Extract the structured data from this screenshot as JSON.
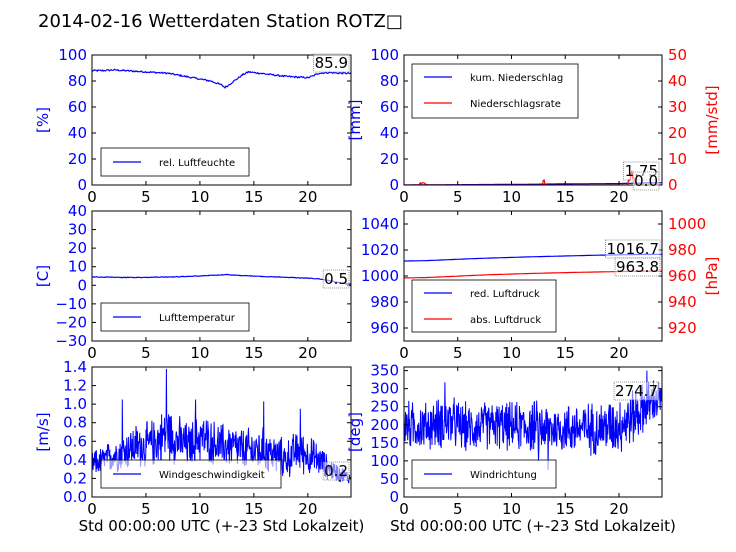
{
  "figure": {
    "title": "2014-02-16 Wetterdaten Station ROTZ□",
    "colors": {
      "left_axis": "#0000ff",
      "right_axis": "#ff0000",
      "frame": "#000000"
    }
  },
  "chart_data": [
    {
      "id": "humidity",
      "type": "line",
      "xlim": [
        0,
        24
      ],
      "xticks": [
        "0",
        "5",
        "10",
        "15",
        "20"
      ],
      "ylabel": "[%]",
      "ylim": [
        0,
        100
      ],
      "yticks": [
        "0",
        "20",
        "40",
        "60",
        "80",
        "100"
      ],
      "series": [
        {
          "name": "rel. Luftfeuchte",
          "color": "#0000ff",
          "x": [
            0,
            1,
            2,
            3,
            4,
            5,
            6,
            7,
            8,
            9,
            10,
            11,
            11.5,
            12,
            12.3,
            12.6,
            13,
            13.5,
            14,
            14.5,
            15,
            16,
            17,
            18,
            19,
            20,
            20.5,
            21,
            22,
            23,
            24
          ],
          "y": [
            88,
            88,
            88.5,
            88,
            87.5,
            87,
            86.5,
            86,
            84.5,
            83,
            81.5,
            80,
            78.5,
            77,
            75,
            76.5,
            79,
            82,
            85,
            87,
            86.5,
            85.5,
            84.5,
            83.5,
            83,
            82.5,
            84,
            86,
            86.5,
            86,
            85.9
          ]
        }
      ],
      "annotation": "85.9"
    },
    {
      "id": "precipitation",
      "type": "line",
      "xlim": [
        0,
        24
      ],
      "xticks": [
        "0",
        "5",
        "10",
        "15",
        "20"
      ],
      "ylabel": "[mm]",
      "ylim": [
        0,
        100
      ],
      "yticks": [
        "0",
        "20",
        "40",
        "60",
        "80",
        "100"
      ],
      "ylabel_right": "[mm/std]",
      "ylim_right": [
        0,
        50
      ],
      "yticks_right": [
        "0",
        "10",
        "20",
        "30",
        "40",
        "50"
      ],
      "series": [
        {
          "name": "kum. Niederschlag",
          "color": "#0000ff",
          "axis": "left",
          "x": [
            0,
            2,
            4,
            6,
            8,
            10,
            12,
            14,
            16,
            18,
            20,
            21,
            22,
            24
          ],
          "y": [
            0,
            0.1,
            0.2,
            0.3,
            0.4,
            0.5,
            0.6,
            0.8,
            0.9,
            1.0,
            1.1,
            1.3,
            1.5,
            1.75
          ]
        },
        {
          "name": "Niederschlagsrate",
          "color": "#ff0000",
          "axis": "right",
          "x": [
            0,
            1.4,
            1.5,
            1.6,
            1.8,
            2.0,
            2.2,
            5,
            8,
            10,
            12.9,
            13.0,
            13.1,
            13.3,
            15,
            18,
            20.8,
            20.9,
            21.0,
            21.1,
            21.2,
            21.3,
            21.4,
            21.5,
            21.7,
            24
          ],
          "y": [
            0,
            0,
            1.0,
            0.5,
            1.0,
            0.4,
            0,
            0,
            0,
            0,
            0,
            3.0,
            0.3,
            0,
            0,
            0,
            0,
            2.5,
            1.2,
            4.0,
            5.5,
            2.0,
            3.5,
            1.0,
            0,
            0
          ]
        }
      ],
      "annotations": [
        "1.75",
        "0.0"
      ]
    },
    {
      "id": "temperature",
      "type": "line",
      "xlim": [
        0,
        24
      ],
      "xticks": [
        "0",
        "5",
        "10",
        "15",
        "20"
      ],
      "ylabel": "[C]",
      "ylim": [
        -30,
        40
      ],
      "yticks": [
        "−30",
        "−20",
        "−10",
        "0",
        "10",
        "20",
        "30",
        "40"
      ],
      "series": [
        {
          "name": "Lufttemperatur",
          "color": "#0000ff",
          "x": [
            0,
            2,
            4,
            6,
            8,
            10,
            11,
            12,
            12.5,
            13,
            14,
            15,
            16,
            18,
            20,
            21,
            22,
            23,
            24
          ],
          "y": [
            4.5,
            4.3,
            4.2,
            4.4,
            4.6,
            5.0,
            5.3,
            5.6,
            5.8,
            5.5,
            5.2,
            5.0,
            4.7,
            4.3,
            3.8,
            3.5,
            2.5,
            1.2,
            0.5
          ]
        }
      ],
      "annotation": "0.5"
    },
    {
      "id": "pressure",
      "type": "line",
      "xlim": [
        0,
        24
      ],
      "xticks": [
        "0",
        "5",
        "10",
        "15",
        "20"
      ],
      "ylim": [
        950,
        1050
      ],
      "yticks": [
        "960",
        "980",
        "1000",
        "1020",
        "1040"
      ],
      "ylabel_right": "[hPa]",
      "ylim_right": [
        910,
        1010
      ],
      "yticks_right": [
        "920",
        "940",
        "960",
        "980",
        "1000"
      ],
      "series": [
        {
          "name": "red. Luftdruck",
          "color": "#0000ff",
          "axis": "left",
          "x": [
            0,
            2,
            4,
            6,
            8,
            10,
            12,
            14,
            16,
            18,
            20,
            22,
            24
          ],
          "y": [
            1011.5,
            1011.8,
            1012.5,
            1013.2,
            1013.8,
            1014.3,
            1014.8,
            1015.2,
            1015.6,
            1016.0,
            1016.3,
            1016.6,
            1016.7
          ]
        },
        {
          "name": "abs. Luftdruck",
          "color": "#ff0000",
          "axis": "right",
          "x": [
            0,
            2,
            4,
            6,
            8,
            10,
            12,
            14,
            16,
            18,
            20,
            22,
            24
          ],
          "y": [
            958.5,
            958.8,
            959.5,
            960.3,
            961.0,
            961.5,
            962.0,
            962.4,
            962.8,
            963.1,
            963.4,
            963.7,
            963.8
          ]
        }
      ],
      "annotations": [
        "1016.7",
        "963.8"
      ]
    },
    {
      "id": "windspeed",
      "type": "line",
      "xlim": [
        0,
        24
      ],
      "xticks": [
        "0",
        "5",
        "10",
        "15",
        "20"
      ],
      "xlabel": "Std 00:00:00 UTC (+-23 Std Lokalzeit)",
      "ylabel": "[m/s]",
      "ylim": [
        0,
        1.4
      ],
      "yticks": [
        "0.0",
        "0.2",
        "0.4",
        "0.6",
        "0.8",
        "1.0",
        "1.2",
        "1.4"
      ],
      "series": [
        {
          "name": "Windgeschwindigkeit",
          "color": "#0000ff",
          "noisy": true,
          "x": [
            0,
            1,
            2,
            3,
            4,
            5,
            6,
            7,
            8,
            9,
            10,
            11,
            12,
            13,
            14,
            15,
            16,
            17,
            18,
            19,
            20,
            21,
            22,
            23,
            24
          ],
          "y": [
            0.35,
            0.4,
            0.45,
            0.5,
            0.55,
            0.55,
            0.6,
            0.7,
            0.6,
            0.55,
            0.65,
            0.6,
            0.55,
            0.55,
            0.5,
            0.5,
            0.5,
            0.45,
            0.4,
            0.5,
            0.45,
            0.4,
            0.3,
            0.25,
            0.2
          ],
          "noise": [
            0.12,
            0.12,
            0.15,
            0.18,
            0.2,
            0.2,
            0.22,
            0.25,
            0.22,
            0.2,
            0.22,
            0.2,
            0.2,
            0.2,
            0.2,
            0.2,
            0.2,
            0.18,
            0.18,
            0.18,
            0.18,
            0.15,
            0.1,
            0.08,
            0.05
          ],
          "peaks": [
            [
              6.9,
              1.38
            ],
            [
              2.8,
              1.05
            ],
            [
              9.6,
              1.05
            ],
            [
              15.9,
              1.03
            ],
            [
              19.3,
              0.95
            ]
          ]
        }
      ],
      "annotation": "0.2"
    },
    {
      "id": "winddirection",
      "type": "line",
      "xlim": [
        0,
        24
      ],
      "xticks": [
        "0",
        "5",
        "10",
        "15",
        "20"
      ],
      "xlabel": "Std 00:00:00 UTC (+-23 Std Lokalzeit)",
      "ylabel": "[deg]",
      "ylim": [
        0,
        360
      ],
      "yticks": [
        "0",
        "50",
        "100",
        "150",
        "200",
        "250",
        "300",
        "350"
      ],
      "series": [
        {
          "name": "Windrichtung",
          "color": "#0000ff",
          "noisy": true,
          "x": [
            0,
            2,
            4,
            6,
            8,
            10,
            12,
            14,
            16,
            18,
            20,
            21,
            22,
            23,
            24
          ],
          "y": [
            200,
            195,
            210,
            190,
            200,
            195,
            195,
            190,
            190,
            190,
            200,
            215,
            240,
            260,
            270
          ],
          "noise": [
            55,
            55,
            60,
            55,
            55,
            55,
            60,
            55,
            60,
            60,
            65,
            65,
            60,
            55,
            50
          ],
          "peaks": [
            [
              3.8,
              318
            ],
            [
              13.4,
              75
            ],
            [
              12.5,
              100
            ],
            [
              22.6,
              350
            ]
          ]
        }
      ],
      "annotation": "274.7"
    }
  ]
}
